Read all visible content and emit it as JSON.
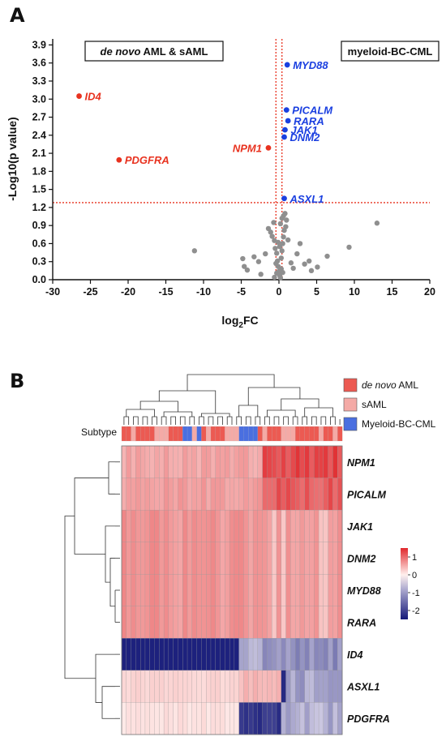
{
  "panel_a_label": "A",
  "panel_b_label": "B",
  "chart_data": [
    {
      "type": "scatter",
      "xlabel_main": "log",
      "xlabel_sub": "2",
      "xlabel_tail": "FC",
      "ylabel": "-Log10(p value)",
      "xlim": [
        -30,
        20
      ],
      "ylim": [
        0,
        4.0
      ],
      "xticks": [
        "-30",
        "-25",
        "-20",
        "-15",
        "-10",
        "-5",
        "0",
        "5",
        "10",
        "15",
        "20"
      ],
      "yticks": [
        "0.0",
        "0.3",
        "0.6",
        "0.9",
        "1.2",
        "1.5",
        "1.8",
        "2.1",
        "2.4",
        "2.7",
        "3.0",
        "3.3",
        "3.6",
        "3.9"
      ],
      "threshold_y": 1.28,
      "threshold_x": [
        -0.4,
        0.4
      ],
      "left_box_italic": "de novo",
      "left_box_rest": " AML & sAML",
      "right_box": "myeloid-BC-CML",
      "colors": {
        "up": "#1a3fe0",
        "down": "#e8321f",
        "ns": "#8f8f8f",
        "threshold": "#e8321f"
      },
      "labeled_points": [
        {
          "gene": "ID4",
          "x": -26.5,
          "y": 3.05,
          "group": "down"
        },
        {
          "gene": "PDGFRA",
          "x": -21.2,
          "y": 1.99,
          "group": "down"
        },
        {
          "gene": "NPM1",
          "x": -1.4,
          "y": 2.19,
          "group": "down"
        },
        {
          "gene": "MYD88",
          "x": 1.1,
          "y": 3.57,
          "group": "up"
        },
        {
          "gene": "PICALM",
          "x": 1.0,
          "y": 2.82,
          "group": "up"
        },
        {
          "gene": "RARA",
          "x": 1.2,
          "y": 2.64,
          "group": "up"
        },
        {
          "gene": "JAK1",
          "x": 0.8,
          "y": 2.49,
          "group": "up"
        },
        {
          "gene": "DNM2",
          "x": 0.7,
          "y": 2.37,
          "group": "up"
        },
        {
          "gene": "ASXL1",
          "x": 0.7,
          "y": 1.35,
          "group": "up"
        }
      ],
      "ns_points": [
        [
          -11.2,
          0.48
        ],
        [
          -4.8,
          0.35
        ],
        [
          -4.6,
          0.22
        ],
        [
          -4.2,
          0.16
        ],
        [
          -3.3,
          0.38
        ],
        [
          -2.7,
          0.3
        ],
        [
          -2.4,
          0.09
        ],
        [
          -1.8,
          0.43
        ],
        [
          -1.4,
          0.85
        ],
        [
          -1.1,
          0.79
        ],
        [
          -0.9,
          0.72
        ],
        [
          -0.6,
          0.65
        ],
        [
          -0.5,
          0.52
        ],
        [
          -0.3,
          0.44
        ],
        [
          -0.2,
          0.31
        ],
        [
          -0.1,
          0.22
        ],
        [
          0.0,
          0.14
        ],
        [
          0.1,
          0.07
        ],
        [
          0.2,
          0.03
        ],
        [
          -0.3,
          0.11
        ],
        [
          -0.4,
          0.27
        ],
        [
          0.3,
          0.36
        ],
        [
          0.4,
          0.48
        ],
        [
          0.5,
          0.6
        ],
        [
          0.6,
          0.71
        ],
        [
          0.7,
          0.82
        ],
        [
          0.2,
          0.93
        ],
        [
          0.4,
          1.02
        ],
        [
          0.8,
          1.1
        ],
        [
          0.6,
          1.06
        ],
        [
          1.0,
          0.99
        ],
        [
          0.3,
          0.18
        ],
        [
          0.5,
          0.12
        ],
        [
          -0.6,
          0.04
        ],
        [
          0.1,
          0.55
        ],
        [
          -0.1,
          0.62
        ],
        [
          1.2,
          0.66
        ],
        [
          1.6,
          0.28
        ],
        [
          1.9,
          0.19
        ],
        [
          2.4,
          0.43
        ],
        [
          2.8,
          0.6
        ],
        [
          3.4,
          0.26
        ],
        [
          4.0,
          0.31
        ],
        [
          4.3,
          0.15
        ],
        [
          5.1,
          0.21
        ],
        [
          6.4,
          0.39
        ],
        [
          9.3,
          0.54
        ],
        [
          13.0,
          0.94
        ],
        [
          -0.7,
          0.95
        ],
        [
          0.9,
          0.88
        ]
      ]
    },
    {
      "type": "heatmap",
      "subtype_label": "Subtype",
      "legend": [
        {
          "label_italic": "de novo",
          "label_rest": " AML",
          "color": "#ec5a52"
        },
        {
          "label_italic": "",
          "label_rest": "sAML",
          "color": "#f4aaa6"
        },
        {
          "label_italic": "",
          "label_rest": "Myeloid-BC-CML",
          "color": "#4a6fe0"
        }
      ],
      "colorbar_ticks": [
        "1",
        "0",
        "-1",
        "-2"
      ],
      "colorbar_range": [
        -2.5,
        1.5
      ],
      "subtype_sequence": "AASAAAASSSAAABBSBASAAASSSBBBBASAAASSSAAAAASAASA",
      "rows": [
        {
          "gene": "NPM1",
          "pattern": "npm"
        },
        {
          "gene": "PICALM",
          "pattern": "picalm"
        },
        {
          "gene": "JAK1",
          "pattern": "flat"
        },
        {
          "gene": "DNM2",
          "pattern": "flat"
        },
        {
          "gene": "MYD88",
          "pattern": "flat"
        },
        {
          "gene": "RARA",
          "pattern": "flat"
        },
        {
          "gene": "ID4",
          "pattern": "id4"
        },
        {
          "gene": "ASXL1",
          "pattern": "asxl1"
        },
        {
          "gene": "PDGFRA",
          "pattern": "pdgfra"
        }
      ]
    }
  ]
}
